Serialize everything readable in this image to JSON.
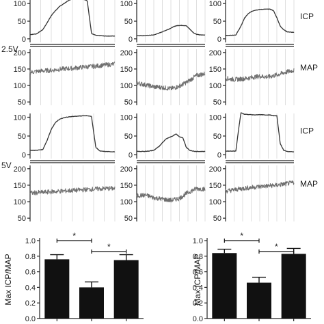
{
  "row_labels": {
    "voltage_a": "2.5V",
    "voltage_b": "5V"
  },
  "trace_labels": {
    "icp": "ICP",
    "map": "MAP"
  },
  "chart_data": [
    {
      "type": "line",
      "voltage": "2.5V",
      "panels": [
        {
          "id": "icp-2.5-a",
          "label": "",
          "yticks": [
            0,
            50,
            100
          ],
          "ylim": [
            -10,
            110
          ],
          "x": [
            0,
            6,
            12,
            16,
            20,
            24,
            28,
            32,
            36,
            40,
            44,
            46,
            50,
            54,
            58,
            62,
            66,
            70,
            74,
            80
          ],
          "y": [
            12,
            14,
            26,
            45,
            66,
            80,
            92,
            100,
            108,
            114,
            118,
            116,
            112,
            108,
            15,
            10,
            9,
            8,
            8,
            8
          ]
        },
        {
          "id": "icp-2.5-b",
          "label": "",
          "yticks": [
            0,
            50,
            100
          ],
          "ylim": [
            -10,
            110
          ],
          "x": [
            0,
            8,
            14,
            20,
            26,
            32,
            38,
            42,
            46,
            50,
            54,
            58,
            62,
            66,
            70,
            74,
            80
          ],
          "y": [
            9,
            9,
            10,
            11,
            16,
            22,
            28,
            33,
            37,
            38,
            38,
            37,
            28,
            18,
            13,
            11,
            11
          ]
        },
        {
          "id": "icp-2.5-c",
          "label": "ICP",
          "yticks": [
            0,
            50,
            100
          ],
          "ylim": [
            -10,
            110
          ],
          "x": [
            0,
            6,
            12,
            18,
            22,
            26,
            30,
            34,
            40,
            46,
            52,
            56,
            60,
            64,
            68,
            72,
            80
          ],
          "y": [
            9,
            10,
            11,
            36,
            58,
            70,
            77,
            81,
            83,
            84,
            84,
            80,
            60,
            36,
            26,
            20,
            18
          ]
        },
        {
          "id": "map-2.5-a",
          "label": "",
          "yticks": [
            50,
            100,
            150,
            200
          ],
          "ylim": [
            40,
            210
          ],
          "x": [
            0,
            10,
            20,
            30,
            40,
            50,
            60,
            70,
            80
          ],
          "y": [
            140,
            144,
            146,
            150,
            152,
            156,
            158,
            162,
            165
          ]
        },
        {
          "id": "map-2.5-b",
          "label": "",
          "yticks": [
            50,
            100,
            150,
            200
          ],
          "ylim": [
            40,
            210
          ],
          "x": [
            0,
            10,
            20,
            30,
            40,
            50,
            60,
            70,
            80
          ],
          "y": [
            108,
            102,
            96,
            94,
            90,
            98,
            112,
            130,
            136
          ]
        },
        {
          "id": "map-2.5-c",
          "label": "MAP",
          "yticks": [
            50,
            100,
            150,
            200
          ],
          "ylim": [
            40,
            210
          ],
          "x": [
            0,
            10,
            20,
            30,
            40,
            50,
            60,
            70,
            80
          ],
          "y": [
            122,
            118,
            120,
            124,
            128,
            126,
            132,
            140,
            146
          ]
        }
      ]
    },
    {
      "type": "line",
      "voltage": "5V",
      "panels": [
        {
          "id": "icp-5-a",
          "label": "",
          "yticks": [
            0,
            50,
            100
          ],
          "ylim": [
            -10,
            110
          ],
          "x": [
            0,
            6,
            12,
            16,
            20,
            24,
            28,
            34,
            40,
            46,
            50,
            54,
            58,
            62,
            66,
            70,
            80
          ],
          "y": [
            12,
            12,
            14,
            38,
            68,
            86,
            95,
            100,
            102,
            103,
            104,
            104,
            102,
            20,
            10,
            9,
            8
          ]
        },
        {
          "id": "icp-5-b",
          "label": "",
          "yticks": [
            0,
            50,
            100
          ],
          "ylim": [
            -10,
            110
          ],
          "x": [
            0,
            8,
            14,
            20,
            26,
            30,
            34,
            38,
            42,
            46,
            50,
            54,
            58,
            62,
            66,
            70,
            80
          ],
          "y": [
            9,
            9,
            10,
            12,
            22,
            32,
            42,
            46,
            50,
            56,
            48,
            45,
            20,
            12,
            10,
            9,
            9
          ]
        },
        {
          "id": "icp-5-c",
          "label": "ICP",
          "yticks": [
            0,
            50,
            100
          ],
          "ylim": [
            -10,
            110
          ],
          "x": [
            0,
            6,
            12,
            16,
            18,
            22,
            28,
            34,
            40,
            46,
            52,
            56,
            60,
            64,
            68,
            72,
            80
          ],
          "y": [
            10,
            10,
            10,
            80,
            112,
            108,
            107,
            106,
            107,
            106,
            106,
            104,
            104,
            30,
            12,
            9,
            8
          ]
        },
        {
          "id": "map-5-a",
          "label": "",
          "yticks": [
            50,
            100,
            150,
            200
          ],
          "ylim": [
            40,
            210
          ],
          "x": [
            0,
            10,
            20,
            30,
            40,
            50,
            60,
            70,
            80
          ],
          "y": [
            126,
            128,
            130,
            132,
            134,
            136,
            138,
            140,
            140
          ]
        },
        {
          "id": "map-5-b",
          "label": "",
          "yticks": [
            50,
            100,
            150,
            200
          ],
          "ylim": [
            40,
            210
          ],
          "x": [
            0,
            10,
            20,
            30,
            40,
            50,
            60,
            70,
            80
          ],
          "y": [
            118,
            120,
            112,
            108,
            104,
            110,
            128,
            140,
            138
          ]
        },
        {
          "id": "map-5-c",
          "label": "MAP",
          "yticks": [
            50,
            100,
            150,
            200
          ],
          "ylim": [
            40,
            210
          ],
          "x": [
            0,
            10,
            20,
            30,
            40,
            50,
            60,
            70,
            80
          ],
          "y": [
            132,
            136,
            140,
            143,
            146,
            148,
            150,
            154,
            158
          ]
        }
      ]
    },
    {
      "type": "bar",
      "ylabel": "Max ICP/MAP",
      "ylim": [
        0,
        1.0
      ],
      "yticks": [
        "0.0",
        "0.2",
        "0.4",
        "0.6",
        "0.8",
        "1.0"
      ],
      "values": [
        0.76,
        0.4,
        0.75
      ],
      "errors": [
        0.06,
        0.07,
        0.07
      ],
      "significance": [
        {
          "from": 0,
          "to": 1,
          "label": "*"
        },
        {
          "from": 1,
          "to": 2,
          "label": "*"
        }
      ]
    },
    {
      "type": "bar",
      "ylabel": "Max ICP/MAP",
      "ylim": [
        0,
        1.0
      ],
      "yticks": [
        "0.0",
        "0.2",
        "0.4",
        "0.6",
        "0.8",
        "1.0"
      ],
      "values": [
        0.84,
        0.46,
        0.83
      ],
      "errors": [
        0.05,
        0.07,
        0.07
      ],
      "significance": [
        {
          "from": 0,
          "to": 1,
          "label": "*"
        },
        {
          "from": 1,
          "to": 2,
          "label": "*"
        }
      ]
    }
  ]
}
